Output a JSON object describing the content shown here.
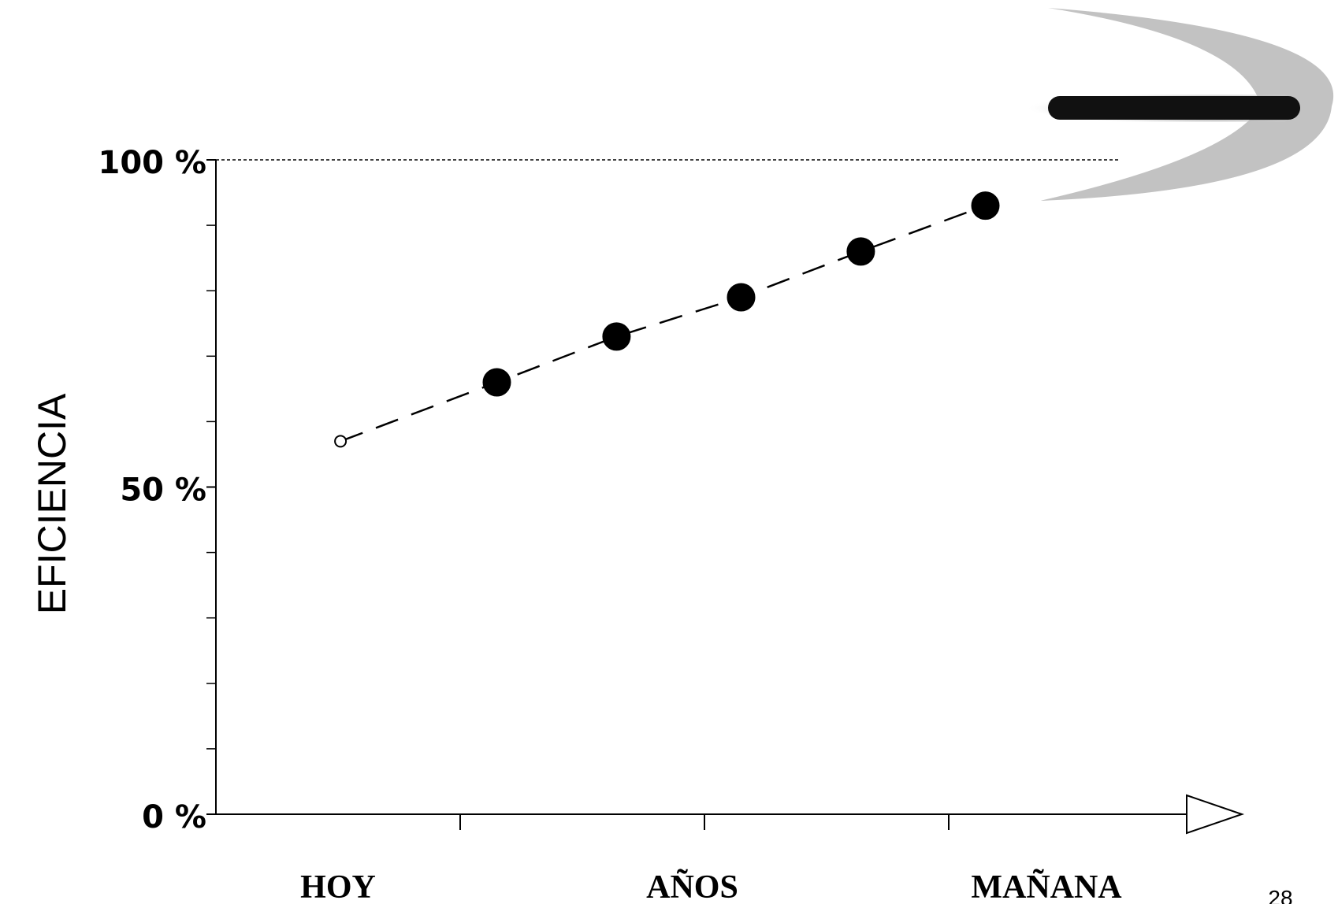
{
  "chart_data": {
    "type": "line",
    "y_label": "EFICIENCIA",
    "x": [
      0.51,
      1.15,
      1.64,
      2.15,
      2.64,
      3.15
    ],
    "series": [
      {
        "color": "#000000",
        "values": [
          57,
          66,
          73,
          79,
          86,
          93
        ]
      }
    ],
    "xlim": [
      0,
      4.2
    ],
    "xticks": [
      1,
      2,
      3
    ],
    "ylim": [
      0,
      100
    ],
    "yticks": [
      {
        "value": 0,
        "label": "0 %"
      },
      {
        "value": 50,
        "label": "50 %"
      },
      {
        "value": 100,
        "label": "100 %"
      }
    ],
    "yticks_minor": [
      10,
      20,
      30,
      40,
      60,
      70,
      80,
      90
    ],
    "annotations": [
      {
        "text": "HOY",
        "x": 0.5
      },
      {
        "text": "AÑOS",
        "x": 1.95
      },
      {
        "text": "MAÑANA",
        "x": 3.4
      }
    ],
    "page_number": "28"
  }
}
